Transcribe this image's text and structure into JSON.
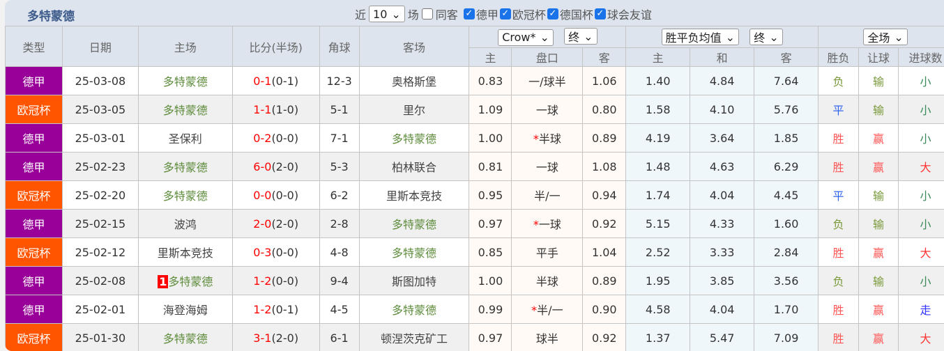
{
  "title": "多特蒙德",
  "filters": {
    "near_label": "近",
    "count": "10",
    "count_unit": "场",
    "same_label": "同客",
    "same_checked": false,
    "leagues": [
      {
        "label": "德甲",
        "checked": true
      },
      {
        "label": "欧冠杯",
        "checked": true
      },
      {
        "label": "德国杯",
        "checked": true
      },
      {
        "label": "球会友谊",
        "checked": true
      }
    ]
  },
  "headers": {
    "type": "类型",
    "date": "日期",
    "home": "主场",
    "score": "比分(半场)",
    "corner": "角球",
    "away": "客场",
    "company": "Crow*",
    "company_stage": "终",
    "avg": "胜平负均值",
    "avg_stage": "终",
    "scope": "全场",
    "sub": [
      "主",
      "盘口",
      "客",
      "主",
      "和",
      "客",
      "胜负",
      "让球",
      "进球数"
    ]
  },
  "colors": {
    "德甲": "#990099",
    "欧冠杯": "#ff5500"
  },
  "rows": [
    {
      "league": "德甲",
      "date": "25-03-08",
      "home": "多特蒙德",
      "score": "0-1",
      "half": "(0-1)",
      "corner": "12-3",
      "away": "奥格斯堡",
      "h": "0.83",
      "line": "一/球半",
      "star": false,
      "a": "1.06",
      "w": "1.40",
      "d": "4.84",
      "l": "7.64",
      "res": "负",
      "hcr": "输",
      "ou": "小"
    },
    {
      "league": "欧冠杯",
      "date": "25-03-05",
      "home": "多特蒙德",
      "score": "1-1",
      "half": "(1-0)",
      "corner": "5-1",
      "away": "里尔",
      "h": "1.09",
      "line": "一球",
      "star": false,
      "a": "0.80",
      "w": "1.58",
      "d": "4.10",
      "l": "5.76",
      "res": "平",
      "hcr": "输",
      "ou": "小"
    },
    {
      "league": "德甲",
      "date": "25-03-01",
      "home": "圣保利",
      "score": "0-2",
      "half": "(0-0)",
      "corner": "7-1",
      "away": "多特蒙德",
      "h": "1.00",
      "line": "半球",
      "star": true,
      "a": "0.89",
      "w": "4.19",
      "d": "3.64",
      "l": "1.85",
      "res": "胜",
      "hcr": "赢",
      "ou": "小"
    },
    {
      "league": "德甲",
      "date": "25-02-23",
      "home": "多特蒙德",
      "score": "6-0",
      "half": "(2-0)",
      "corner": "5-3",
      "away": "柏林联合",
      "h": "0.81",
      "line": "一球",
      "star": false,
      "a": "1.08",
      "w": "1.48",
      "d": "4.63",
      "l": "6.29",
      "res": "胜",
      "hcr": "赢",
      "ou": "大"
    },
    {
      "league": "欧冠杯",
      "date": "25-02-20",
      "home": "多特蒙德",
      "score": "0-0",
      "half": "(0-0)",
      "corner": "6-2",
      "away": "里斯本竞技",
      "h": "0.95",
      "line": "半/一",
      "star": false,
      "a": "0.94",
      "w": "1.74",
      "d": "4.04",
      "l": "4.45",
      "res": "平",
      "hcr": "输",
      "ou": "小"
    },
    {
      "league": "德甲",
      "date": "25-02-15",
      "home": "波鸿",
      "score": "2-0",
      "half": "(2-0)",
      "corner": "2-8",
      "away": "多特蒙德",
      "h": "0.97",
      "line": "一球",
      "star": true,
      "a": "0.92",
      "w": "5.15",
      "d": "4.33",
      "l": "1.60",
      "res": "负",
      "hcr": "输",
      "ou": "小"
    },
    {
      "league": "欧冠杯",
      "date": "25-02-12",
      "home": "里斯本竞技",
      "score": "0-3",
      "half": "(0-0)",
      "corner": "4-8",
      "away": "多特蒙德",
      "h": "0.85",
      "line": "平手",
      "star": false,
      "a": "1.04",
      "w": "2.52",
      "d": "3.33",
      "l": "2.84",
      "res": "胜",
      "hcr": "赢",
      "ou": "大"
    },
    {
      "league": "德甲",
      "date": "25-02-08",
      "home": "多特蒙德",
      "home_badge": "1",
      "score": "1-2",
      "half": "(0-0)",
      "corner": "9-4",
      "away": "斯图加特",
      "h": "1.00",
      "line": "半球",
      "star": false,
      "a": "0.89",
      "w": "1.95",
      "d": "3.85",
      "l": "3.56",
      "res": "负",
      "hcr": "输",
      "ou": "小"
    },
    {
      "league": "德甲",
      "date": "25-02-01",
      "home": "海登海姆",
      "score": "1-2",
      "half": "(0-1)",
      "corner": "4-5",
      "away": "多特蒙德",
      "h": "0.99",
      "line": "半/一",
      "star": true,
      "a": "0.90",
      "w": "4.58",
      "d": "4.04",
      "l": "1.70",
      "res": "胜",
      "hcr": "赢",
      "ou": "走"
    },
    {
      "league": "欧冠杯",
      "date": "25-01-30",
      "home": "多特蒙德",
      "score": "3-1",
      "half": "(2-0)",
      "corner": "6-1",
      "away": "顿涅茨克矿工",
      "h": "0.97",
      "line": "球半",
      "star": false,
      "a": "0.92",
      "w": "1.37",
      "d": "5.47",
      "l": "7.09",
      "res": "胜",
      "hcr": "赢",
      "ou": "大"
    }
  ]
}
